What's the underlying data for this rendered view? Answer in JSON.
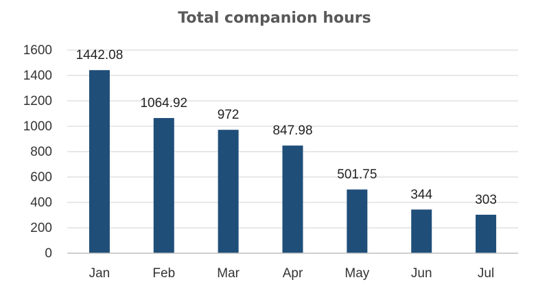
{
  "chart_data": {
    "type": "bar",
    "title": "Total companion hours",
    "xlabel": "",
    "ylabel": "",
    "categories": [
      "Jan",
      "Feb",
      "Mar",
      "Apr",
      "May",
      "Jun",
      "Jul"
    ],
    "values": [
      1442.08,
      1064.92,
      972,
      847.98,
      501.75,
      344,
      303
    ],
    "data_labels": [
      "1442.08",
      "1064.92",
      "972",
      "847.98",
      "501.75",
      "344",
      "303"
    ],
    "ylim": [
      0,
      1600
    ],
    "yticks": [
      0,
      200,
      400,
      600,
      800,
      1000,
      1200,
      1400,
      1600
    ],
    "grid": true,
    "legend": "none",
    "bar_color": "#1f4e79",
    "grid_color": "#d9d9d9",
    "axis_color": "#bfbfbf"
  }
}
